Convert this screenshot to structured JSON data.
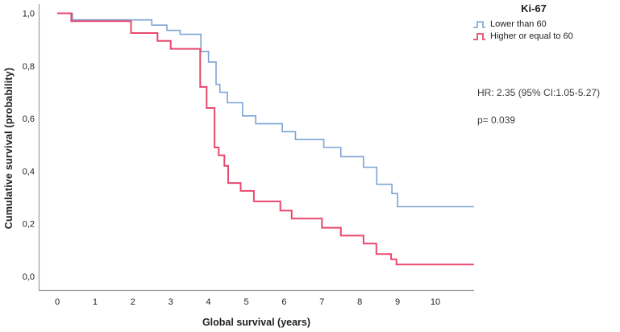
{
  "figure": {
    "legend": {
      "title": "Ki-67",
      "entries": [
        {
          "label": "Lower than 60",
          "color": "#7ba3d4"
        },
        {
          "label": "Higher or equal to 60",
          "color": "#e9486e"
        }
      ]
    },
    "annotations": {
      "hr": "HR: 2.35 (95% CI:1.05-5.27)",
      "p": "p= 0.039"
    }
  },
  "chart_data": {
    "type": "line",
    "subtype": "kaplan-meier-step",
    "title": "Ki-67",
    "xlabel": "Global survival (years)",
    "ylabel": "Cumulative survival (probability)",
    "xlim": [
      -0.5,
      11.02
    ],
    "ylim": [
      0,
      1.05
    ],
    "grid": false,
    "legend_position": "top-right-outside",
    "axis_color": "#9e9e9e",
    "text_color": "#1f1f1f",
    "x_ticks": [
      0,
      1,
      2,
      3,
      4,
      5,
      6,
      7,
      8,
      9,
      10
    ],
    "y_ticks": [
      {
        "value": 1.0,
        "label": "1,0"
      },
      {
        "value": 0.8,
        "label": "0,8"
      },
      {
        "value": 0.6,
        "label": "0,6"
      },
      {
        "value": 0.4,
        "label": "0,4"
      },
      {
        "value": 0.2,
        "label": "0,2"
      },
      {
        "value": 0.0,
        "label": "0,0"
      }
    ],
    "x_end": 11.02,
    "series": [
      {
        "name": "Lower than 60",
        "color": "#7ba3d4",
        "points": [
          [
            0,
            1.0
          ],
          [
            0.4,
            0.975
          ],
          [
            2.5,
            0.955
          ],
          [
            2.9,
            0.935
          ],
          [
            3.25,
            0.92
          ],
          [
            3.8,
            0.855
          ],
          [
            4.0,
            0.815
          ],
          [
            4.2,
            0.73
          ],
          [
            4.3,
            0.7
          ],
          [
            4.5,
            0.66
          ],
          [
            4.9,
            0.61
          ],
          [
            5.25,
            0.58
          ],
          [
            5.95,
            0.55
          ],
          [
            6.3,
            0.52
          ],
          [
            7.05,
            0.49
          ],
          [
            7.5,
            0.455
          ],
          [
            8.1,
            0.415
          ],
          [
            8.45,
            0.35
          ],
          [
            8.85,
            0.315
          ],
          [
            9.0,
            0.265
          ]
        ]
      },
      {
        "name": "Higher or equal to 60",
        "color": "#e9486e",
        "points": [
          [
            0,
            1.0
          ],
          [
            0.37,
            0.97
          ],
          [
            1.95,
            0.925
          ],
          [
            2.65,
            0.895
          ],
          [
            3.0,
            0.865
          ],
          [
            3.78,
            0.72
          ],
          [
            3.95,
            0.64
          ],
          [
            4.16,
            0.49
          ],
          [
            4.27,
            0.46
          ],
          [
            4.42,
            0.42
          ],
          [
            4.52,
            0.355
          ],
          [
            4.85,
            0.325
          ],
          [
            5.2,
            0.285
          ],
          [
            5.9,
            0.25
          ],
          [
            6.2,
            0.22
          ],
          [
            7.0,
            0.185
          ],
          [
            7.5,
            0.155
          ],
          [
            8.1,
            0.125
          ],
          [
            8.44,
            0.085
          ],
          [
            8.83,
            0.065
          ],
          [
            8.97,
            0.045
          ]
        ]
      }
    ]
  }
}
